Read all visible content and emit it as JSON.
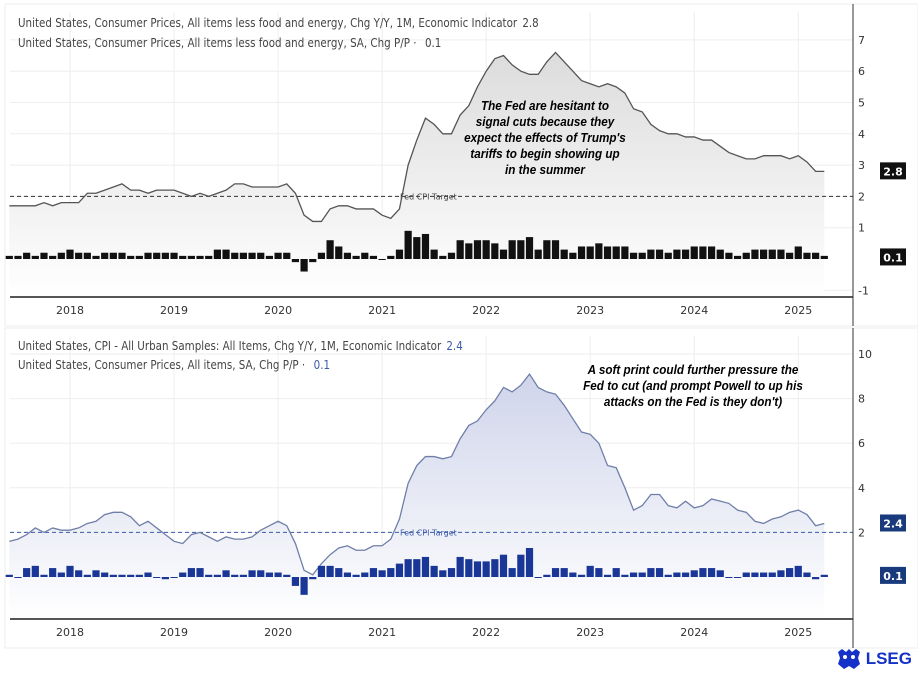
{
  "brand": {
    "name": "LSEG",
    "color": "#1431c8"
  },
  "x": [
    "2017-06",
    "2017-07",
    "2017-08",
    "2017-09",
    "2017-10",
    "2017-11",
    "2017-12",
    "2018-01",
    "2018-02",
    "2018-03",
    "2018-04",
    "2018-05",
    "2018-06",
    "2018-07",
    "2018-08",
    "2018-09",
    "2018-10",
    "2018-11",
    "2018-12",
    "2019-01",
    "2019-02",
    "2019-03",
    "2019-04",
    "2019-05",
    "2019-06",
    "2019-07",
    "2019-08",
    "2019-09",
    "2019-10",
    "2019-11",
    "2019-12",
    "2020-01",
    "2020-02",
    "2020-03",
    "2020-04",
    "2020-05",
    "2020-06",
    "2020-07",
    "2020-08",
    "2020-09",
    "2020-10",
    "2020-11",
    "2020-12",
    "2021-01",
    "2021-02",
    "2021-03",
    "2021-04",
    "2021-05",
    "2021-06",
    "2021-07",
    "2021-08",
    "2021-09",
    "2021-10",
    "2021-11",
    "2021-12",
    "2022-01",
    "2022-02",
    "2022-03",
    "2022-04",
    "2022-05",
    "2022-06",
    "2022-07",
    "2022-08",
    "2022-09",
    "2022-10",
    "2022-11",
    "2022-12",
    "2023-01",
    "2023-02",
    "2023-03",
    "2023-04",
    "2023-05",
    "2023-06",
    "2023-07",
    "2023-08",
    "2023-09",
    "2023-10",
    "2023-11",
    "2023-12",
    "2024-01",
    "2024-02",
    "2024-03",
    "2024-04",
    "2024-05",
    "2024-06",
    "2024-07",
    "2024-08",
    "2024-09",
    "2024-10",
    "2024-11",
    "2024-12",
    "2025-01",
    "2025-02",
    "2025-03",
    "2025-04"
  ],
  "chart_data": [
    {
      "type": "line+bar",
      "x_ticks": [
        "2018",
        "2019",
        "2020",
        "2021",
        "2022",
        "2023",
        "2024",
        "2025"
      ],
      "y_ticks": [
        "7",
        "6",
        "5",
        "4",
        "3",
        "2",
        "1",
        "-1"
      ],
      "ylim": [
        -1.2,
        7.8
      ],
      "grid": true,
      "reference_line": {
        "value": 2,
        "label": "Fed CPI Target"
      },
      "annotation": "The Fed are hesitant to signal cuts because they expect the effects of Trump's tariffs to begin showing up in the summer",
      "colors": {
        "line": "#555555",
        "bar": "#111111",
        "badge": "#111111",
        "legend_value": "#444444"
      },
      "series": [
        {
          "name": "United States, Consumer Prices, All items less food and energy, Chg Y/Y, 1M, Economic Indicator",
          "last": "2.8",
          "kind": "line",
          "values": [
            1.7,
            1.7,
            1.7,
            1.7,
            1.8,
            1.7,
            1.8,
            1.8,
            1.8,
            2.1,
            2.1,
            2.2,
            2.3,
            2.4,
            2.2,
            2.2,
            2.1,
            2.2,
            2.2,
            2.2,
            2.1,
            2.0,
            2.1,
            2.0,
            2.1,
            2.2,
            2.4,
            2.4,
            2.3,
            2.3,
            2.3,
            2.3,
            2.4,
            2.1,
            1.4,
            1.2,
            1.2,
            1.6,
            1.7,
            1.7,
            1.6,
            1.6,
            1.6,
            1.4,
            1.3,
            1.6,
            3.0,
            3.8,
            4.5,
            4.3,
            4.0,
            4.0,
            4.6,
            4.9,
            5.5,
            6.0,
            6.4,
            6.5,
            6.2,
            6.0,
            5.9,
            5.9,
            6.3,
            6.6,
            6.3,
            6.0,
            5.7,
            5.6,
            5.5,
            5.6,
            5.5,
            5.3,
            4.8,
            4.7,
            4.3,
            4.1,
            4.0,
            4.0,
            3.9,
            3.9,
            3.8,
            3.8,
            3.6,
            3.4,
            3.3,
            3.2,
            3.2,
            3.3,
            3.3,
            3.3,
            3.2,
            3.3,
            3.1,
            2.8,
            2.8
          ]
        },
        {
          "name": "United States, Consumer Prices, All items less food and energy, SA, Chg P/P",
          "last": "0.1",
          "kind": "bar",
          "values": [
            0.1,
            0.1,
            0.2,
            0.1,
            0.2,
            0.1,
            0.2,
            0.3,
            0.2,
            0.2,
            0.1,
            0.2,
            0.2,
            0.2,
            0.1,
            0.1,
            0.2,
            0.2,
            0.2,
            0.2,
            0.1,
            0.1,
            0.1,
            0.1,
            0.3,
            0.3,
            0.2,
            0.2,
            0.2,
            0.2,
            0.1,
            0.2,
            0.2,
            -0.1,
            -0.4,
            -0.1,
            0.2,
            0.6,
            0.4,
            0.2,
            0.1,
            0.2,
            0.1,
            0.0,
            0.1,
            0.3,
            0.9,
            0.7,
            0.8,
            0.3,
            0.1,
            0.2,
            0.6,
            0.5,
            0.6,
            0.6,
            0.5,
            0.3,
            0.6,
            0.6,
            0.7,
            0.3,
            0.6,
            0.6,
            0.3,
            0.2,
            0.4,
            0.4,
            0.5,
            0.4,
            0.4,
            0.4,
            0.2,
            0.2,
            0.3,
            0.3,
            0.2,
            0.3,
            0.3,
            0.4,
            0.4,
            0.4,
            0.3,
            0.2,
            0.1,
            0.2,
            0.3,
            0.3,
            0.3,
            0.3,
            0.2,
            0.4,
            0.2,
            0.2,
            0.1
          ]
        }
      ]
    },
    {
      "type": "line+bar",
      "x_ticks": [
        "2018",
        "2019",
        "2020",
        "2021",
        "2022",
        "2023",
        "2024",
        "2025"
      ],
      "y_ticks": [
        "10",
        "8",
        "6",
        "4",
        "2"
      ],
      "ylim": [
        -1.9,
        10.8
      ],
      "grid": true,
      "reference_line": {
        "value": 2,
        "label": "Fed CPI Target"
      },
      "annotation": "A soft print could further pressure the Fed to cut (and prompt Powell to up his attacks on the Fed is they don't)",
      "colors": {
        "line": "#6f7fa8",
        "bar": "#1a3696",
        "badge": "#1a3a7e",
        "legend_value": "#3a5aa8"
      },
      "series": [
        {
          "name": "United States, CPI - All Urban Samples: All Items, Chg Y/Y, 1M, Economic Indicator",
          "last": "2.4",
          "kind": "line",
          "values": [
            1.6,
            1.7,
            1.9,
            2.2,
            2.0,
            2.2,
            2.1,
            2.1,
            2.2,
            2.4,
            2.5,
            2.8,
            2.9,
            2.9,
            2.7,
            2.3,
            2.5,
            2.2,
            1.9,
            1.6,
            1.5,
            1.9,
            2.0,
            1.8,
            1.6,
            1.8,
            1.7,
            1.7,
            1.8,
            2.1,
            2.3,
            2.5,
            2.3,
            1.5,
            0.3,
            0.1,
            0.6,
            1.0,
            1.3,
            1.4,
            1.2,
            1.2,
            1.4,
            1.4,
            1.7,
            2.6,
            4.2,
            5.0,
            5.4,
            5.4,
            5.3,
            5.4,
            6.2,
            6.8,
            7.0,
            7.5,
            7.9,
            8.5,
            8.3,
            8.6,
            9.1,
            8.5,
            8.3,
            8.2,
            7.7,
            7.1,
            6.5,
            6.4,
            6.0,
            5.0,
            4.9,
            4.0,
            3.0,
            3.2,
            3.7,
            3.7,
            3.2,
            3.1,
            3.4,
            3.1,
            3.2,
            3.5,
            3.4,
            3.3,
            3.0,
            2.9,
            2.5,
            2.4,
            2.6,
            2.7,
            2.9,
            3.0,
            2.8,
            2.3,
            2.4
          ]
        },
        {
          "name": "United States, Consumer Prices, All items, SA, Chg P/P",
          "last": "0.1",
          "kind": "bar",
          "values": [
            0.1,
            0.0,
            0.4,
            0.5,
            0.1,
            0.4,
            0.2,
            0.5,
            0.3,
            0.1,
            0.3,
            0.2,
            0.1,
            0.1,
            0.1,
            0.1,
            0.2,
            0.0,
            -0.1,
            0.0,
            0.2,
            0.4,
            0.4,
            0.1,
            0.1,
            0.3,
            0.1,
            0.1,
            0.3,
            0.3,
            0.2,
            0.2,
            0.1,
            -0.4,
            -0.8,
            -0.1,
            0.5,
            0.5,
            0.4,
            0.2,
            0.1,
            0.2,
            0.4,
            0.3,
            0.4,
            0.6,
            0.8,
            0.8,
            0.9,
            0.5,
            0.3,
            0.4,
            0.9,
            0.8,
            0.7,
            0.7,
            0.8,
            1.0,
            0.4,
            1.0,
            1.3,
            0.0,
            0.1,
            0.4,
            0.4,
            0.2,
            0.1,
            0.5,
            0.4,
            0.1,
            0.4,
            0.1,
            0.2,
            0.2,
            0.4,
            0.4,
            0.1,
            0.2,
            0.2,
            0.3,
            0.4,
            0.4,
            0.3,
            0.0,
            0.0,
            0.2,
            0.2,
            0.2,
            0.2,
            0.3,
            0.4,
            0.5,
            0.2,
            -0.1,
            0.1
          ]
        }
      ]
    }
  ]
}
